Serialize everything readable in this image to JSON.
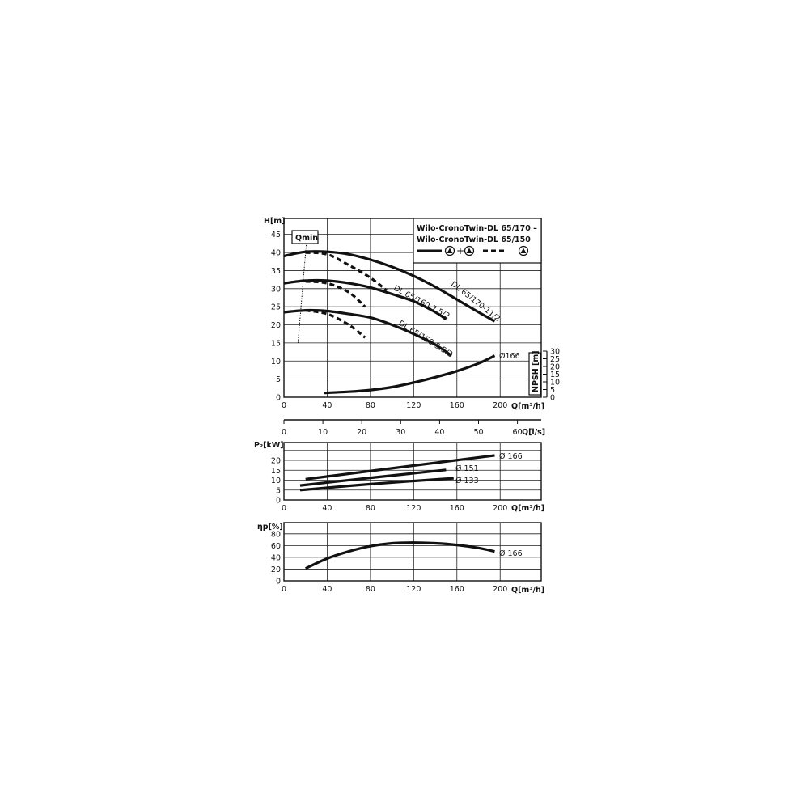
{
  "chart_data": [
    {
      "type": "line",
      "title": "Wilo-CronoTwin-DL 65/170 - Wilo-CronoTwin-DL 65/150",
      "title_lines": [
        "Wilo-CronoTwin-DL 65/170 –",
        "Wilo-CronoTwin-DL 65/150"
      ],
      "legend": {
        "solid": "twin pump operation (▲+▲)",
        "dashed": "single pump operation (▲)",
        "placement": "top-right"
      },
      "xlabel": "Q[m³/h]",
      "ylabel": "H[m]",
      "y2label": "NPSH [m]",
      "xlim": [
        0,
        238
      ],
      "ylim": [
        0,
        49.4
      ],
      "y2lim": [
        0,
        30
      ],
      "xticks": [
        0,
        40,
        80,
        120,
        160,
        200
      ],
      "yticks": [
        0,
        5,
        10,
        15,
        20,
        25,
        30,
        35,
        40,
        45
      ],
      "y2ticks": [
        0,
        5,
        10,
        15,
        20,
        25,
        30
      ],
      "grid": true,
      "secondary_x": {
        "label": "Q[l/s]",
        "ticks": [
          0,
          10,
          20,
          30,
          40,
          50,
          60
        ]
      },
      "qmin_label": "Qmin",
      "qmin_line": {
        "x": [
          13,
          21
        ],
        "y": [
          15,
          43.5
        ]
      },
      "series": [
        {
          "name": "DL 65/170-11/2",
          "style": "solid",
          "x": [
            0,
            20,
            40,
            60,
            80,
            100,
            120,
            140,
            160,
            180,
            195
          ],
          "y": [
            39,
            40.2,
            40.2,
            39.5,
            38,
            36,
            33.5,
            30.5,
            27,
            23.5,
            21
          ]
        },
        {
          "name": "DL 65/160-7.5/2",
          "style": "solid",
          "x": [
            0,
            20,
            40,
            60,
            80,
            100,
            120,
            140,
            150
          ],
          "y": [
            31.5,
            32.2,
            32.2,
            31.5,
            30.3,
            28.5,
            26.5,
            23.5,
            21.5
          ]
        },
        {
          "name": "DL 65/150-5.5/2",
          "style": "solid",
          "x": [
            0,
            20,
            40,
            60,
            80,
            100,
            120,
            140,
            155
          ],
          "y": [
            23.5,
            24,
            23.8,
            23,
            22,
            20,
            17.5,
            14.5,
            11.5
          ]
        },
        {
          "style": "dashed",
          "x": [
            20,
            40,
            60,
            80,
            95
          ],
          "y": [
            40,
            39.5,
            36.5,
            33,
            29.5
          ]
        },
        {
          "style": "dashed",
          "x": [
            20,
            40,
            60,
            75
          ],
          "y": [
            32,
            31.5,
            29,
            25
          ]
        },
        {
          "style": "dashed",
          "x": [
            20,
            40,
            60,
            75
          ],
          "y": [
            24,
            23,
            20,
            16.5
          ]
        },
        {
          "name": "Ø166",
          "axis": "NPSH",
          "style": "solid",
          "x": [
            37,
            60,
            80,
            100,
            120,
            140,
            160,
            180,
            195
          ],
          "y": [
            2.8,
            3.6,
            4.7,
            6.6,
            9.5,
            13,
            17,
            22,
            27
          ]
        }
      ]
    },
    {
      "type": "line",
      "xlabel": "Q[m³/h]",
      "ylabel": "P₂[kW]",
      "xlim": [
        0,
        238
      ],
      "ylim": [
        0,
        29
      ],
      "xticks": [
        0,
        40,
        80,
        120,
        160,
        200
      ],
      "yticks": [
        0,
        5,
        10,
        15,
        20
      ],
      "grid": true,
      "series": [
        {
          "name": "Ø 166",
          "x": [
            20,
            195
          ],
          "y": [
            10.5,
            22.5
          ]
        },
        {
          "name": "Ø 151",
          "x": [
            15,
            80,
            150
          ],
          "y": [
            7.3,
            11.2,
            15.2
          ]
        },
        {
          "name": "Ø 133",
          "x": [
            15,
            80,
            157
          ],
          "y": [
            5,
            8,
            11
          ]
        }
      ]
    },
    {
      "type": "line",
      "xlabel": "Q[m³/h]",
      "ylabel": "ηp[%]",
      "xlim": [
        0,
        238
      ],
      "ylim": [
        0,
        99
      ],
      "xticks": [
        0,
        40,
        80,
        120,
        160,
        200
      ],
      "yticks": [
        0,
        20,
        40,
        60,
        80
      ],
      "grid": true,
      "series": [
        {
          "name": "Ø 166",
          "x": [
            20,
            40,
            60,
            80,
            100,
            120,
            140,
            160,
            180,
            195
          ],
          "y": [
            21,
            38,
            50,
            59,
            64,
            65,
            64,
            61,
            56,
            50
          ]
        }
      ]
    }
  ]
}
